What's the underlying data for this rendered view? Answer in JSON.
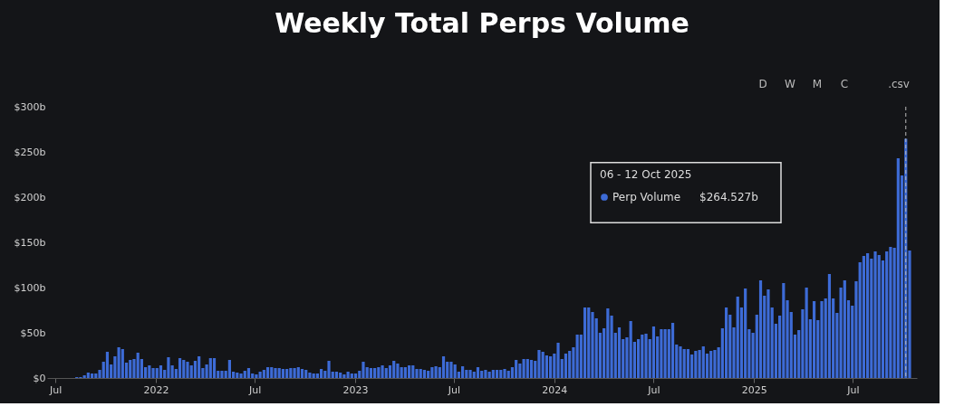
{
  "chart_data": {
    "type": "bar",
    "title": "Weekly Total Perps Volume",
    "x": [
      "2021-07-05",
      "2021-07-12",
      "2021-07-19",
      "2021-07-26",
      "2021-08-02",
      "2021-08-09",
      "2021-08-16",
      "2021-08-23",
      "2021-08-30",
      "2021-09-06",
      "2021-09-13",
      "2021-09-20",
      "2021-09-27",
      "2021-10-04",
      "2021-10-11",
      "2021-10-18",
      "2021-10-25",
      "2021-11-01",
      "2021-11-08",
      "2021-11-15",
      "2021-11-22",
      "2021-11-29",
      "2021-12-06",
      "2021-12-13",
      "2021-12-20",
      "2021-12-27",
      "2022-01-03",
      "2022-01-10",
      "2022-01-17",
      "2022-01-24",
      "2022-01-31",
      "2022-02-07",
      "2022-02-14",
      "2022-02-21",
      "2022-02-28",
      "2022-03-07",
      "2022-03-14",
      "2022-03-21",
      "2022-03-28",
      "2022-04-04",
      "2022-04-11",
      "2022-04-18",
      "2022-04-25",
      "2022-05-02",
      "2022-05-09",
      "2022-05-16",
      "2022-05-23",
      "2022-05-30",
      "2022-06-06",
      "2022-06-13",
      "2022-06-20",
      "2022-06-27",
      "2022-07-04",
      "2022-07-11",
      "2022-07-18",
      "2022-07-25",
      "2022-08-01",
      "2022-08-08",
      "2022-08-15",
      "2022-08-22",
      "2022-08-29",
      "2022-09-05",
      "2022-09-12",
      "2022-09-19",
      "2022-09-26",
      "2022-10-03",
      "2022-10-10",
      "2022-10-17",
      "2022-10-24",
      "2022-10-31",
      "2022-11-07",
      "2022-11-14",
      "2022-11-21",
      "2022-11-28",
      "2022-12-05",
      "2022-12-12",
      "2022-12-19",
      "2022-12-26",
      "2023-01-02",
      "2023-01-09",
      "2023-01-16",
      "2023-01-23",
      "2023-01-30",
      "2023-02-06",
      "2023-02-13",
      "2023-02-20",
      "2023-02-27",
      "2023-03-06",
      "2023-03-13",
      "2023-03-20",
      "2023-03-27",
      "2023-04-03",
      "2023-04-10",
      "2023-04-17",
      "2023-04-24",
      "2023-05-01",
      "2023-05-08",
      "2023-05-15",
      "2023-05-22",
      "2023-05-29",
      "2023-06-05",
      "2023-06-12",
      "2023-06-19",
      "2023-06-26",
      "2023-07-03",
      "2023-07-10",
      "2023-07-17",
      "2023-07-24",
      "2023-07-31",
      "2023-08-07",
      "2023-08-14",
      "2023-08-21",
      "2023-08-28",
      "2023-09-04",
      "2023-09-11",
      "2023-09-18",
      "2023-09-25",
      "2023-10-02",
      "2023-10-09",
      "2023-10-16",
      "2023-10-23",
      "2023-10-30",
      "2023-11-06",
      "2023-11-13",
      "2023-11-20",
      "2023-11-27",
      "2023-12-04",
      "2023-12-11",
      "2023-12-18",
      "2023-12-25",
      "2024-01-01",
      "2024-01-08",
      "2024-01-15",
      "2024-01-22",
      "2024-01-29",
      "2024-02-05",
      "2024-02-12",
      "2024-02-19",
      "2024-02-26",
      "2024-03-04",
      "2024-03-11",
      "2024-03-18",
      "2024-03-25",
      "2024-04-01",
      "2024-04-08",
      "2024-04-15",
      "2024-04-22",
      "2024-04-29",
      "2024-05-06",
      "2024-05-13",
      "2024-05-20",
      "2024-05-27",
      "2024-06-03",
      "2024-06-10",
      "2024-06-17",
      "2024-06-24",
      "2024-07-01",
      "2024-07-08",
      "2024-07-15",
      "2024-07-22",
      "2024-07-29",
      "2024-08-05",
      "2024-08-12",
      "2024-08-19",
      "2024-08-26",
      "2024-09-02",
      "2024-09-09",
      "2024-09-16",
      "2024-09-23",
      "2024-09-30",
      "2024-10-07",
      "2024-10-14",
      "2024-10-21",
      "2024-10-28",
      "2024-11-04",
      "2024-11-11",
      "2024-11-18",
      "2024-11-25",
      "2024-12-02",
      "2024-12-09",
      "2024-12-16",
      "2024-12-23",
      "2024-12-30",
      "2025-01-06",
      "2025-01-13",
      "2025-01-20",
      "2025-01-27",
      "2025-02-03",
      "2025-02-10",
      "2025-02-17",
      "2025-02-24",
      "2025-03-03",
      "2025-03-10",
      "2025-03-17",
      "2025-03-24",
      "2025-03-31",
      "2025-04-07",
      "2025-04-14",
      "2025-04-21",
      "2025-04-28",
      "2025-05-05",
      "2025-05-12",
      "2025-05-19",
      "2025-05-26",
      "2025-06-02",
      "2025-06-09",
      "2025-06-16",
      "2025-06-23",
      "2025-06-30",
      "2025-07-07",
      "2025-07-14",
      "2025-07-21",
      "2025-07-28",
      "2025-08-04",
      "2025-08-11",
      "2025-08-18",
      "2025-08-25",
      "2025-09-01",
      "2025-09-08",
      "2025-09-15",
      "2025-09-22",
      "2025-09-29",
      "2025-10-06",
      "2025-10-13"
    ],
    "series": [
      {
        "name": "Perp Volume",
        "color": "#3d6bd6",
        "values": [
          0,
          0,
          0,
          0,
          0,
          1,
          1,
          3,
          6,
          5,
          5,
          9,
          18,
          29,
          15,
          24,
          34,
          32,
          17,
          20,
          21,
          28,
          21,
          12,
          14,
          11,
          11,
          14,
          9,
          23,
          14,
          10,
          22,
          20,
          18,
          14,
          19,
          24,
          11,
          15,
          22,
          22,
          8,
          8,
          8,
          20,
          7,
          6,
          5,
          8,
          11,
          5,
          4,
          7,
          9,
          12,
          12,
          11,
          11,
          10,
          10,
          11,
          11,
          12,
          10,
          9,
          6,
          5,
          5,
          10,
          8,
          19,
          7,
          7,
          6,
          4,
          7,
          5,
          5,
          8,
          18,
          12,
          11,
          11,
          12,
          14,
          11,
          14,
          19,
          16,
          12,
          12,
          14,
          14,
          10,
          10,
          9,
          8,
          12,
          13,
          12,
          24,
          18,
          18,
          15,
          7,
          13,
          9,
          9,
          7,
          12,
          8,
          9,
          7,
          9,
          9,
          9,
          10,
          8,
          12,
          20,
          16,
          21,
          21,
          20,
          19,
          31,
          29,
          25,
          24,
          27,
          39,
          21,
          27,
          30,
          34,
          48,
          48,
          78,
          78,
          73,
          66,
          50,
          55,
          77,
          69,
          50,
          56,
          43,
          45,
          63,
          40,
          43,
          48,
          49,
          43,
          57,
          46,
          54,
          54,
          54,
          61,
          37,
          35,
          32,
          32,
          26,
          30,
          31,
          35,
          27,
          30,
          31,
          34,
          55,
          78,
          70,
          56,
          90,
          78,
          99,
          54,
          50,
          70,
          108,
          91,
          98,
          78,
          60,
          69,
          105,
          86,
          73,
          48,
          53,
          76,
          100,
          65,
          85,
          64,
          85,
          88,
          115,
          88,
          72,
          100,
          108,
          86,
          80,
          107,
          128,
          135,
          138,
          132,
          140,
          136,
          130,
          140,
          145,
          144,
          243,
          224,
          264.527,
          141
        ]
      }
    ],
    "xlim": [
      "2021-06-24",
      "2025-10-18"
    ],
    "xticks": [
      {
        "value": "2021-07-01",
        "label": "Jul"
      },
      {
        "value": "2022-01-01",
        "label": "2022"
      },
      {
        "value": "2022-07-01",
        "label": "Jul"
      },
      {
        "value": "2023-01-01",
        "label": "2023"
      },
      {
        "value": "2023-07-01",
        "label": "Jul"
      },
      {
        "value": "2024-01-01",
        "label": "2024"
      },
      {
        "value": "2024-07-01",
        "label": "Jul"
      },
      {
        "value": "2025-01-01",
        "label": "2025"
      },
      {
        "value": "2025-07-01",
        "label": "Jul"
      }
    ],
    "ylim": [
      0,
      300
    ],
    "yticks": [
      {
        "value": 0,
        "label": "$0"
      },
      {
        "value": 50,
        "label": "$50b"
      },
      {
        "value": 100,
        "label": "$100b"
      },
      {
        "value": 150,
        "label": "$150b"
      },
      {
        "value": 200,
        "label": "$200b"
      },
      {
        "value": 250,
        "label": "$250b"
      },
      {
        "value": 300,
        "label": "$300b"
      }
    ],
    "grid": false,
    "ref_lines": [
      {
        "axis": "x",
        "value": "2025-10-06",
        "color": "#bbbbbb",
        "line_style": "dashed"
      }
    ],
    "annotations": [
      "06 - 12 Oct 2025",
      "$264.527b",
      "D",
      "W",
      "M",
      "C",
      ".csv"
    ]
  }
}
